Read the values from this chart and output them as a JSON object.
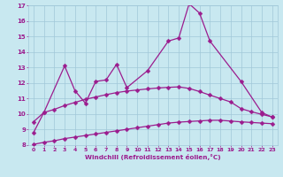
{
  "line1_x": [
    0,
    1,
    3,
    4,
    5,
    6,
    7,
    8,
    9,
    11,
    13,
    14,
    15,
    16,
    17,
    20,
    22,
    23
  ],
  "line1_y": [
    8.8,
    10.1,
    13.1,
    11.5,
    10.7,
    12.1,
    12.2,
    13.2,
    11.7,
    12.8,
    14.7,
    14.9,
    17.1,
    16.5,
    14.7,
    12.1,
    10.1,
    9.8
  ],
  "line2_x": [
    0,
    1,
    2,
    3,
    4,
    5,
    6,
    7,
    8,
    9,
    10,
    11,
    12,
    13,
    14,
    15,
    16,
    17,
    18,
    19,
    20,
    21,
    22,
    23
  ],
  "line2_y": [
    9.5,
    10.1,
    10.3,
    10.55,
    10.75,
    10.95,
    11.1,
    11.25,
    11.38,
    11.48,
    11.55,
    11.62,
    11.68,
    11.72,
    11.75,
    11.65,
    11.45,
    11.22,
    11.0,
    10.78,
    10.35,
    10.15,
    9.98,
    9.82
  ],
  "line3_x": [
    0,
    1,
    2,
    3,
    4,
    5,
    6,
    7,
    8,
    9,
    10,
    11,
    12,
    13,
    14,
    15,
    16,
    17,
    18,
    19,
    20,
    21,
    22,
    23
  ],
  "line3_y": [
    8.05,
    8.18,
    8.28,
    8.42,
    8.52,
    8.62,
    8.72,
    8.82,
    8.92,
    9.02,
    9.12,
    9.22,
    9.32,
    9.42,
    9.48,
    9.52,
    9.56,
    9.6,
    9.6,
    9.55,
    9.5,
    9.46,
    9.42,
    9.38
  ],
  "line_color": "#9b1c8e",
  "bg_color": "#c8e8f0",
  "grid_color": "#a0c8d8",
  "xlabel": "Windchill (Refroidissement éolien,°C)",
  "xlim": [
    -0.5,
    23.5
  ],
  "ylim": [
    8,
    17
  ],
  "yticks": [
    8,
    9,
    10,
    11,
    12,
    13,
    14,
    15,
    16,
    17
  ],
  "xticks": [
    0,
    1,
    2,
    3,
    4,
    5,
    6,
    7,
    8,
    9,
    10,
    11,
    12,
    13,
    14,
    15,
    16,
    17,
    18,
    19,
    20,
    21,
    22,
    23
  ],
  "marker": "D",
  "markersize": 2.5,
  "linewidth": 0.9
}
